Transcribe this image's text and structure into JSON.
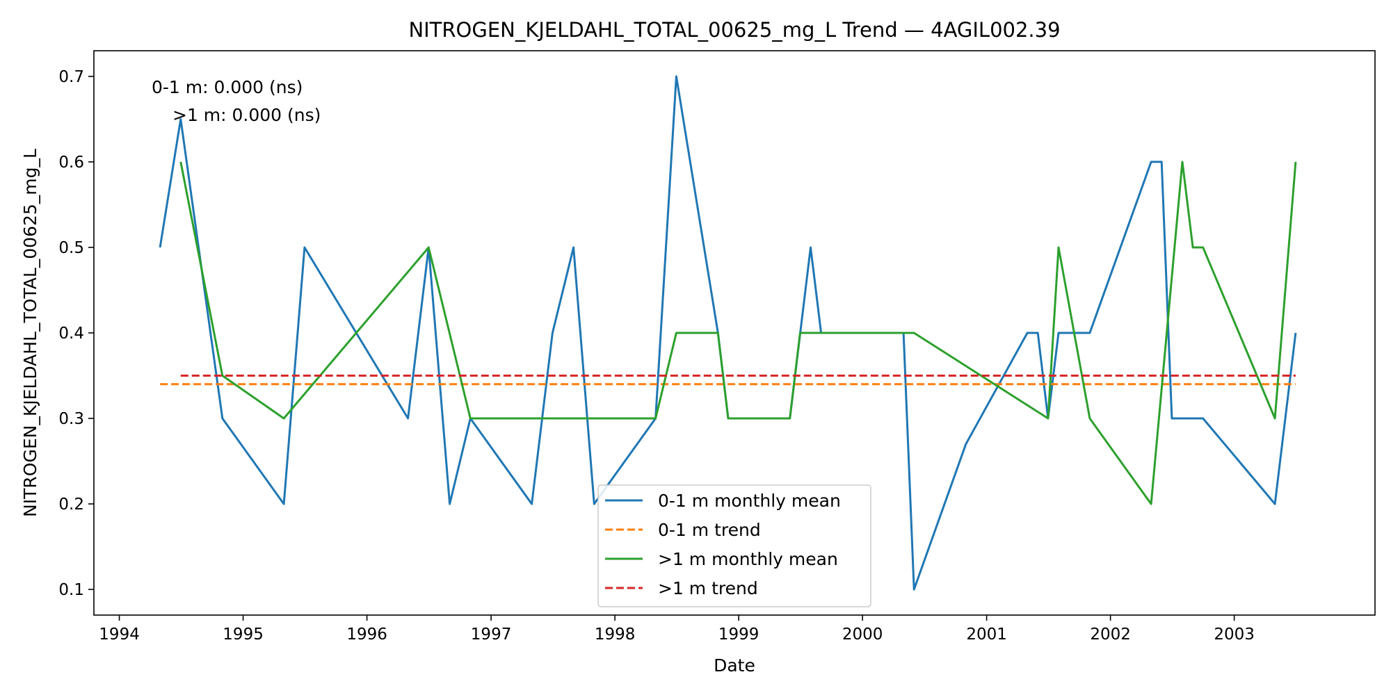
{
  "chart_data": {
    "type": "line",
    "title": "NITROGEN_KJELDAHL_TOTAL_00625_mg_L Trend — 4AGIL002.39",
    "xlabel": "Date",
    "ylabel": "NITROGEN_KJELDAHL_TOTAL_00625_mg_L",
    "xlim": [
      "1993-10-18",
      "2004-02-20"
    ],
    "ylim": [
      0.07,
      0.73
    ],
    "x_ticks": [
      {
        "date": "1994-01-01",
        "label": "1994"
      },
      {
        "date": "1995-01-01",
        "label": "1995"
      },
      {
        "date": "1996-01-01",
        "label": "1996"
      },
      {
        "date": "1997-01-01",
        "label": "1997"
      },
      {
        "date": "1998-01-01",
        "label": "1998"
      },
      {
        "date": "1999-01-01",
        "label": "1999"
      },
      {
        "date": "2000-01-01",
        "label": "2000"
      },
      {
        "date": "2001-01-01",
        "label": "2001"
      },
      {
        "date": "2002-01-01",
        "label": "2002"
      },
      {
        "date": "2003-01-01",
        "label": "2003"
      }
    ],
    "y_ticks": [
      {
        "value": 0.1,
        "label": "0.1"
      },
      {
        "value": 0.2,
        "label": "0.2"
      },
      {
        "value": 0.3,
        "label": "0.3"
      },
      {
        "value": 0.4,
        "label": "0.4"
      },
      {
        "value": 0.5,
        "label": "0.5"
      },
      {
        "value": 0.6,
        "label": "0.6"
      },
      {
        "value": 0.7,
        "label": "0.7"
      }
    ],
    "grid": false,
    "legend_position": "lower-center",
    "annotations": [
      "0-1 m: 0.000 (ns)",
      ">1 m: 0.000 (ns)"
    ],
    "series": [
      {
        "name": "0-1 m monthly mean",
        "color": "#1f77b4",
        "style": "solid",
        "points": [
          [
            "1994-05-01",
            0.5
          ],
          [
            "1994-07-01",
            0.65
          ],
          [
            "1994-11-01",
            0.3
          ],
          [
            "1995-05-01",
            0.2
          ],
          [
            "1995-07-01",
            0.5
          ],
          [
            "1996-05-01",
            0.3
          ],
          [
            "1996-07-01",
            0.5
          ],
          [
            "1996-09-01",
            0.2
          ],
          [
            "1996-11-01",
            0.3
          ],
          [
            "1997-05-01",
            0.2
          ],
          [
            "1997-07-01",
            0.4
          ],
          [
            "1997-09-01",
            0.5
          ],
          [
            "1997-11-01",
            0.2
          ],
          [
            "1998-05-01",
            0.3
          ],
          [
            "1998-07-01",
            0.7
          ],
          [
            "1998-11-01",
            0.4
          ],
          [
            "1998-12-01",
            0.3
          ],
          [
            "1999-06-01",
            0.3
          ],
          [
            "1999-08-01",
            0.5
          ],
          [
            "1999-09-01",
            0.4
          ],
          [
            "2000-05-01",
            0.4
          ],
          [
            "2000-06-01",
            0.1
          ],
          [
            "2000-11-01",
            0.27
          ],
          [
            "2001-05-01",
            0.4
          ],
          [
            "2001-06-01",
            0.4
          ],
          [
            "2001-07-01",
            0.3
          ],
          [
            "2001-08-01",
            0.4
          ],
          [
            "2001-11-01",
            0.4
          ],
          [
            "2002-05-01",
            0.6
          ],
          [
            "2002-06-01",
            0.6
          ],
          [
            "2002-07-01",
            0.3
          ],
          [
            "2002-10-01",
            0.3
          ],
          [
            "2003-05-01",
            0.2
          ],
          [
            "2003-07-01",
            0.4
          ]
        ]
      },
      {
        "name": "0-1 m trend",
        "color": "#ff7f0e",
        "style": "dashed",
        "points": [
          [
            "1994-05-01",
            0.34
          ],
          [
            "2003-07-01",
            0.34
          ]
        ]
      },
      {
        "name": ">1 m monthly mean",
        "color": "#2ca02c",
        "style": "solid",
        "points": [
          [
            "1994-07-01",
            0.6
          ],
          [
            "1994-11-01",
            0.35
          ],
          [
            "1995-05-01",
            0.3
          ],
          [
            "1996-07-01",
            0.5
          ],
          [
            "1996-11-01",
            0.3
          ],
          [
            "1998-05-01",
            0.3
          ],
          [
            "1998-07-01",
            0.4
          ],
          [
            "1998-11-01",
            0.4
          ],
          [
            "1998-12-01",
            0.3
          ],
          [
            "1999-06-01",
            0.3
          ],
          [
            "1999-07-01",
            0.4
          ],
          [
            "2000-06-01",
            0.4
          ],
          [
            "2001-07-01",
            0.3
          ],
          [
            "2001-08-01",
            0.5
          ],
          [
            "2001-11-01",
            0.3
          ],
          [
            "2002-05-01",
            0.2
          ],
          [
            "2002-08-01",
            0.6
          ],
          [
            "2002-09-01",
            0.5
          ],
          [
            "2002-10-01",
            0.5
          ],
          [
            "2003-05-01",
            0.3
          ],
          [
            "2003-07-01",
            0.6
          ]
        ]
      },
      {
        "name": ">1 m trend",
        "color": "#d62728",
        "style": "dashed",
        "points": [
          [
            "1994-07-01",
            0.35
          ],
          [
            "2003-07-01",
            0.35
          ]
        ]
      }
    ]
  }
}
